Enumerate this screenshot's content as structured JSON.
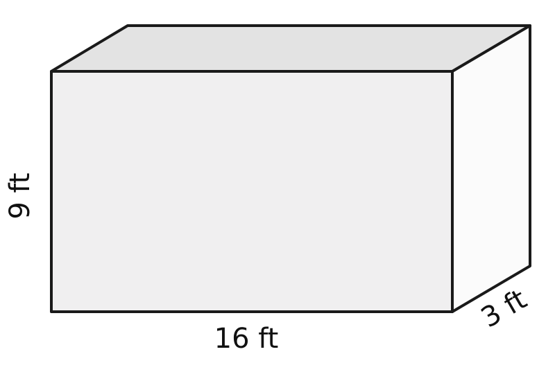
{
  "diagram": {
    "labels": {
      "height": "9 ft",
      "length": "16 ft",
      "depth": "3 ft"
    },
    "colors": {
      "front_face": "#f0eff0",
      "top_face": "#e3e3e3",
      "side_face": "#fbfbfb",
      "edge": "#1a1a1a"
    }
  }
}
